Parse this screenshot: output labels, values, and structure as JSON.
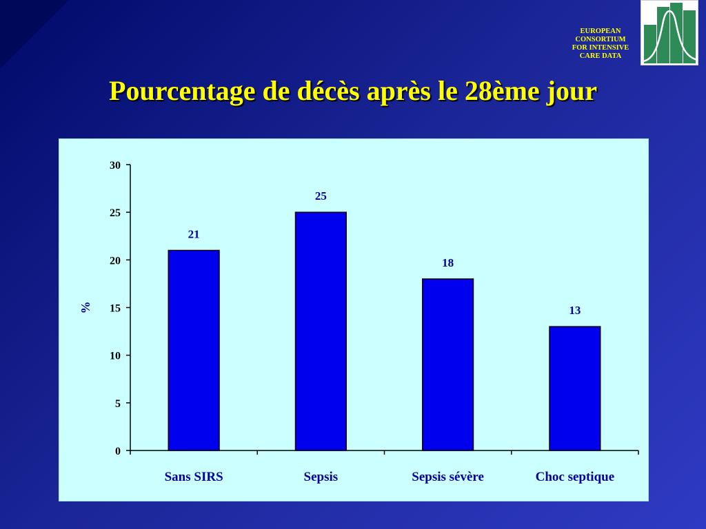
{
  "slide": {
    "title": "Pourcentage de décès après le 28ème jour",
    "org_lines": [
      "EUROPEAN",
      "CONSORTIUM",
      "FOR INTENSIVE",
      "CARE DATA"
    ],
    "logo_icon": "histogram-bell-curve-logo-icon"
  },
  "colors": {
    "bar": "#0000ee",
    "panel": "#ccffff",
    "title": "#ffff00",
    "label": "#000099"
  },
  "chart_data": {
    "type": "bar",
    "categories": [
      "Sans SIRS",
      "Sepsis",
      "Sepsis sévère",
      "Choc septique"
    ],
    "values": [
      21,
      25,
      18,
      13
    ],
    "data_labels": [
      "21",
      "25",
      "18",
      "13"
    ],
    "ylabel": "%",
    "ylim": [
      0,
      30
    ],
    "yticks": [
      0,
      5,
      10,
      15,
      20,
      25,
      30
    ],
    "grid": false,
    "legend": false
  }
}
